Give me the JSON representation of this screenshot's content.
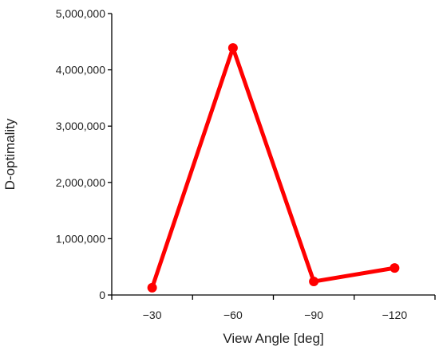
{
  "chart_data": {
    "type": "line",
    "title": "",
    "xlabel": "View Angle [deg]",
    "ylabel": "D-optimality",
    "categories": [
      "−30",
      "−60",
      "−90",
      "−120"
    ],
    "series": [
      {
        "values": [
          130000,
          4390000,
          240000,
          480000
        ],
        "color": "#ff0000"
      }
    ],
    "ylim": [
      0,
      5000000
    ],
    "yticks": [
      {
        "value": 0,
        "label": "0"
      },
      {
        "value": 1000000,
        "label": "1,000,000"
      },
      {
        "value": 2000000,
        "label": "2,000,000"
      },
      {
        "value": 3000000,
        "label": "3,000,000"
      },
      {
        "value": 4000000,
        "label": "4,000,000"
      },
      {
        "value": 5000000,
        "label": "5,000,000"
      }
    ],
    "grid": false,
    "legend": "none",
    "marker": "circle"
  }
}
